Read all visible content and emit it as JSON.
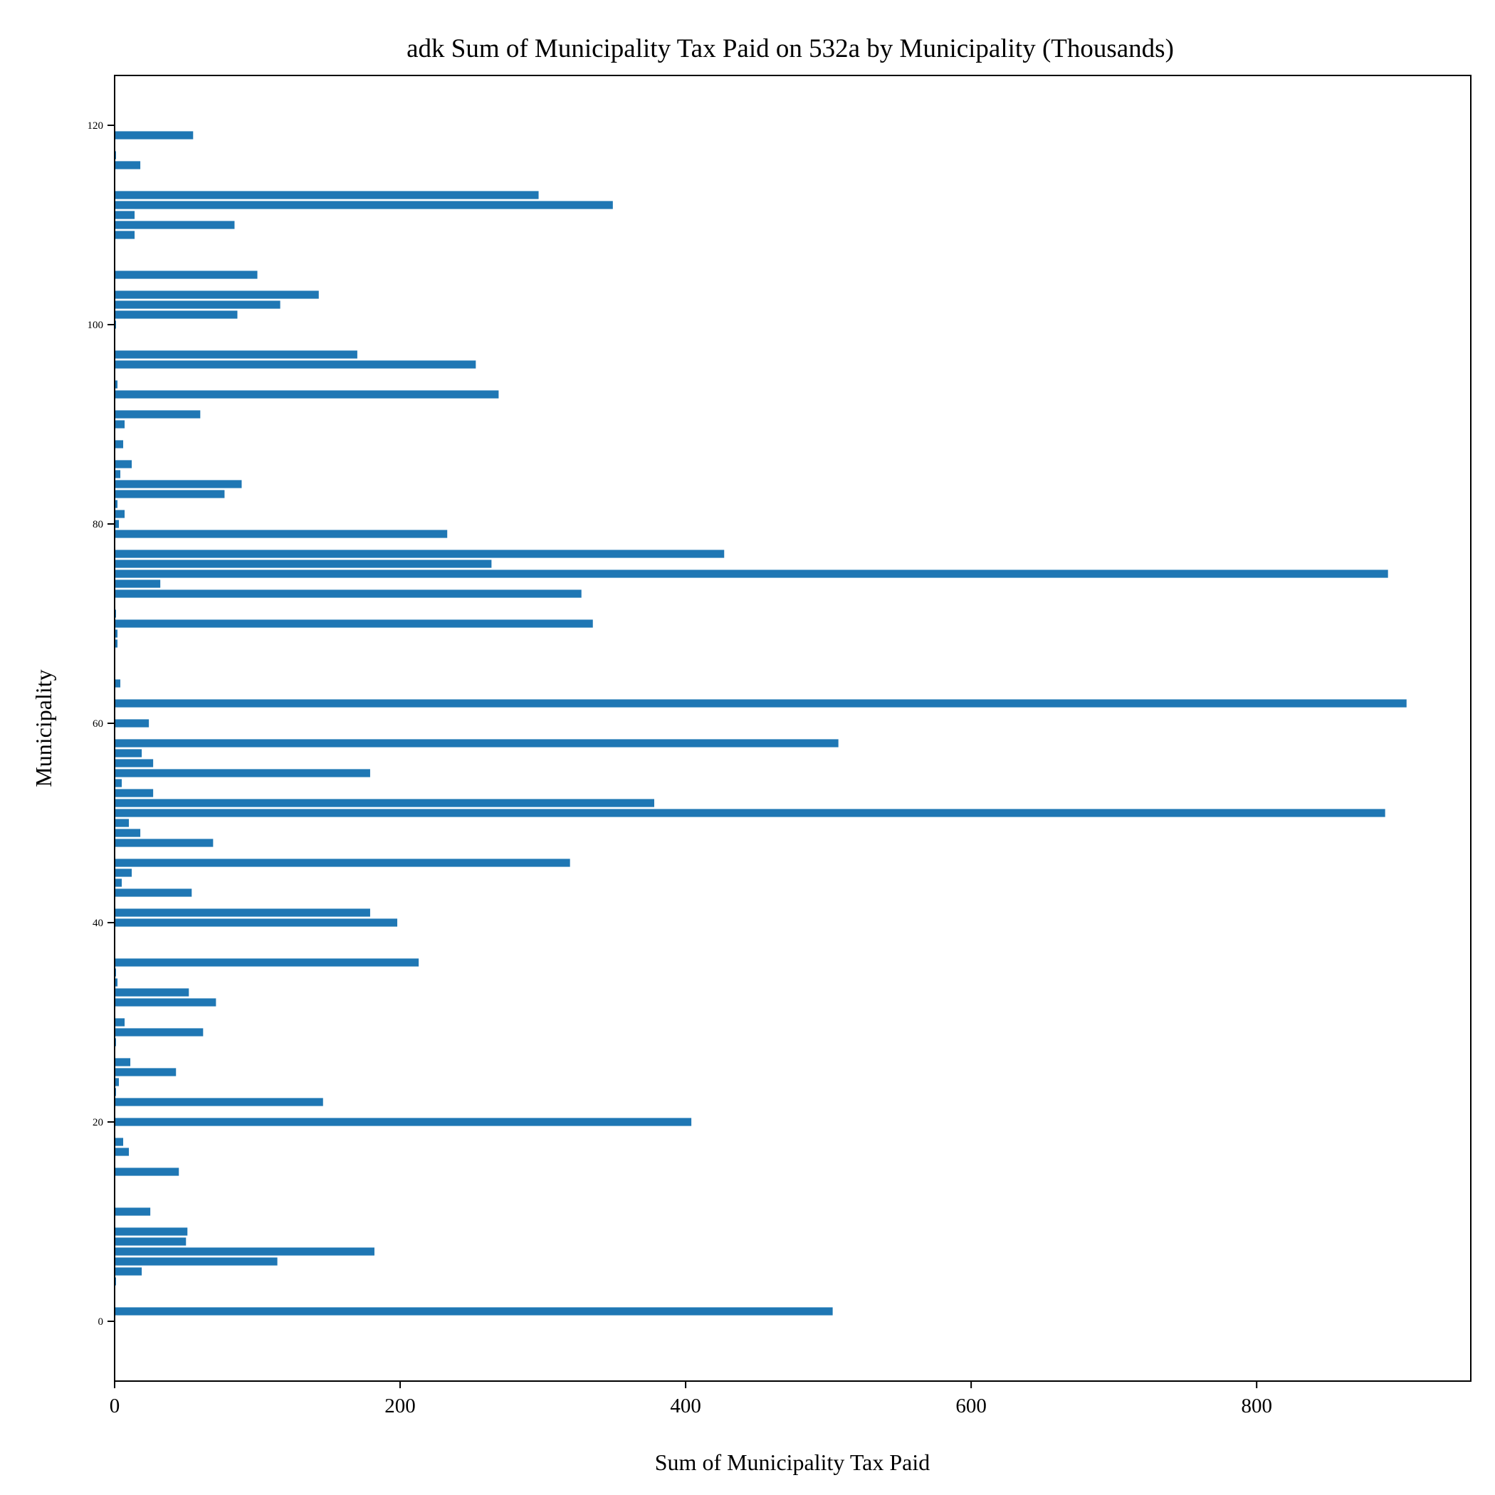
{
  "chart_data": {
    "type": "bar",
    "orientation": "horizontal",
    "title": "adk Sum of Municipality Tax Paid on 532a by Municipality (Thousands)",
    "xlabel": "Sum of Municipality Tax Paid",
    "ylabel": "Municipality",
    "xlim": [
      0,
      950
    ],
    "ylim": [
      -6,
      125
    ],
    "xticks": [
      0,
      200,
      400,
      600,
      800
    ],
    "yticks": [
      0,
      20,
      40,
      60,
      80,
      100,
      120
    ],
    "bar_color": "#1f77b4",
    "grid": false,
    "legend": "none",
    "categories": [
      1,
      4,
      5,
      6,
      7,
      8,
      9,
      11,
      15,
      17,
      18,
      20,
      22,
      23,
      24,
      25,
      26,
      28,
      29,
      30,
      32,
      33,
      34,
      35,
      36,
      40,
      41,
      43,
      44,
      45,
      46,
      48,
      49,
      50,
      51,
      52,
      53,
      54,
      55,
      56,
      57,
      58,
      60,
      62,
      64,
      68,
      69,
      70,
      71,
      73,
      74,
      75,
      76,
      77,
      79,
      80,
      81,
      82,
      83,
      84,
      85,
      86,
      88,
      90,
      91,
      93,
      94,
      96,
      97,
      100,
      101,
      102,
      103,
      105,
      109,
      110,
      111,
      112,
      113,
      116,
      117,
      119
    ],
    "values": [
      503,
      1,
      19,
      114,
      182,
      50,
      51,
      25,
      45,
      10,
      6,
      404,
      146,
      1,
      3,
      43,
      11,
      1,
      62,
      7,
      71,
      52,
      2,
      1,
      213,
      198,
      179,
      54,
      5,
      12,
      319,
      69,
      18,
      10,
      890,
      378,
      27,
      5,
      179,
      27,
      19,
      507,
      24,
      905,
      4,
      2,
      2,
      335,
      1,
      327,
      32,
      892,
      264,
      427,
      233,
      3,
      7,
      2,
      77,
      89,
      4,
      12,
      6,
      7,
      60,
      269,
      2,
      253,
      170,
      1,
      86,
      116,
      143,
      100,
      14,
      84,
      14,
      349,
      297,
      18,
      1,
      55
    ]
  }
}
